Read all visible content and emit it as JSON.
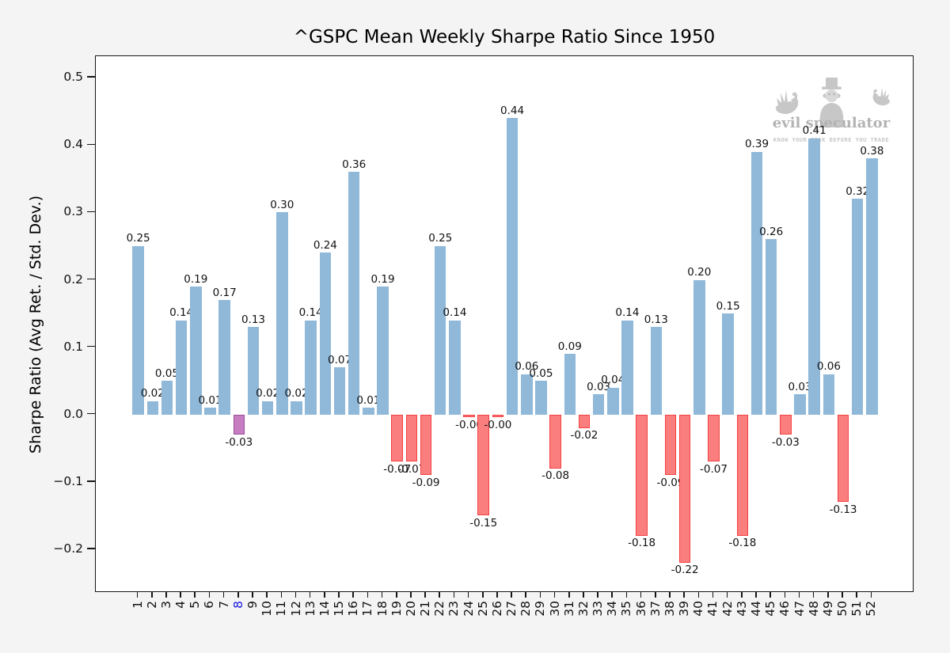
{
  "chart_data": {
    "type": "bar",
    "title": "^GSPC Mean Weekly Sharpe Ratio Since 1950",
    "xlabel": "",
    "ylabel": "Sharpe Ratio (Avg Ret. / Std. Dev.)",
    "categories": [
      1,
      2,
      3,
      4,
      5,
      6,
      7,
      8,
      9,
      10,
      11,
      12,
      13,
      14,
      15,
      16,
      17,
      18,
      19,
      20,
      21,
      22,
      23,
      24,
      25,
      26,
      27,
      28,
      29,
      30,
      31,
      32,
      33,
      34,
      35,
      36,
      37,
      38,
      39,
      40,
      41,
      42,
      43,
      44,
      45,
      46,
      47,
      48,
      49,
      50,
      51,
      52
    ],
    "values": [
      0.25,
      0.02,
      0.05,
      0.14,
      0.19,
      0.01,
      0.17,
      -0.03,
      0.13,
      0.02,
      0.3,
      0.02,
      0.14,
      0.24,
      0.07,
      0.36,
      0.01,
      0.19,
      -0.07,
      -0.07,
      -0.09,
      0.25,
      0.14,
      -0.004,
      -0.15,
      -0.004,
      0.44,
      0.06,
      0.05,
      -0.08,
      0.09,
      -0.02,
      0.03,
      0.04,
      0.14,
      -0.18,
      0.13,
      -0.09,
      -0.22,
      0.2,
      -0.07,
      0.15,
      -0.18,
      0.39,
      0.26,
      -0.03,
      0.03,
      0.41,
      0.06,
      -0.13,
      0.32,
      0.38
    ],
    "bar_labels": [
      "0.25",
      "0.02",
      "0.05",
      "0.14",
      "0.19",
      "0.01",
      "0.17",
      "-0.03",
      "0.13",
      "0.02",
      "0.30",
      "0.02",
      "0.14",
      "0.24",
      "0.07",
      "0.36",
      "0.01",
      "0.19",
      "-0.07",
      "-0.07",
      "-0.09",
      "0.25",
      "0.14",
      "-0.00",
      "-0.15",
      "-0.00",
      "0.44",
      "0.06",
      "0.05",
      "-0.08",
      "0.09",
      "-0.02",
      "0.03",
      "0.04",
      "0.14",
      "-0.18",
      "0.13",
      "-0.09",
      "-0.22",
      "0.20",
      "-0.07",
      "0.15",
      "-0.18",
      "0.39",
      "0.26",
      "-0.03",
      "0.03",
      "0.41",
      "0.06",
      "-0.13",
      "0.32",
      "0.38"
    ],
    "highlighted_week": 8,
    "ylim": [
      -0.265,
      0.532
    ],
    "yticks": [
      0.5,
      0.4,
      0.3,
      0.2,
      0.1,
      0.0,
      -0.1,
      -0.2
    ],
    "ytick_labels": [
      "0.5",
      "0.4",
      "0.3",
      "0.2",
      "0.1",
      "0.0",
      "−0.1",
      "−0.2"
    ],
    "grid": false,
    "legend": "none"
  },
  "watermark": {
    "name": "evil speculator",
    "tagline": "KNOW YOUR RISK BEFORE YOU TRADE"
  },
  "colors": {
    "positive_bar": "#8fb8d9",
    "negative_bar_fill": "#fa7e7e",
    "negative_bar_edge": "#f54040",
    "highlight_bar_fill": "#c77dc2",
    "highlight_bar_edge": "#9a4f96",
    "highlight_tick_label": "#1a1ae6",
    "background": "#f4f4f5",
    "plot_background": "#ffffff",
    "watermark_gray": "#c7c7c7"
  }
}
